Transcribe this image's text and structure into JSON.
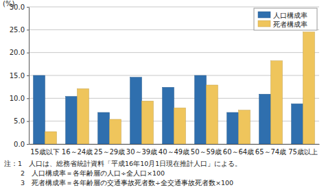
{
  "chart_data": {
    "type": "bar",
    "y_label": "(%)",
    "categories": [
      "15歳以下",
      "16～24歳",
      "25～29歳",
      "30～39歳",
      "40～49歳",
      "50～59歳",
      "60～64歳",
      "65～74歳",
      "75歳以上"
    ],
    "series": [
      {
        "name": "人口構成率",
        "color": "#2f6fae",
        "values": [
          15.0,
          10.4,
          6.9,
          14.6,
          12.4,
          15.0,
          6.9,
          10.9,
          8.8
        ]
      },
      {
        "name": "死者構成率",
        "color": "#efc55c",
        "values": [
          2.7,
          12.1,
          5.4,
          9.4,
          7.9,
          12.9,
          7.4,
          18.2,
          24.5
        ]
      }
    ],
    "ylim": [
      0,
      30
    ],
    "yticks": [
      {
        "value": 0,
        "label": "0.0"
      },
      {
        "value": 5,
        "label": "5.0"
      },
      {
        "value": 10,
        "label": "10.0"
      },
      {
        "value": 15,
        "label": "15.0"
      },
      {
        "value": 20,
        "label": "20.0"
      },
      {
        "value": 25,
        "label": "25.0"
      },
      {
        "value": 30,
        "label": "30.0"
      }
    ],
    "grid": true,
    "legend": "top-right",
    "annotations": [
      "注：1　人口は、総務省統計資料「平成16年10月1日現在推計人口」による。",
      "2　人口構成率＝各年齢層の人口÷全人口×100",
      "3　死者構成率＝各年齢層の交通事故死者数÷全交通事故死者数×100"
    ]
  }
}
